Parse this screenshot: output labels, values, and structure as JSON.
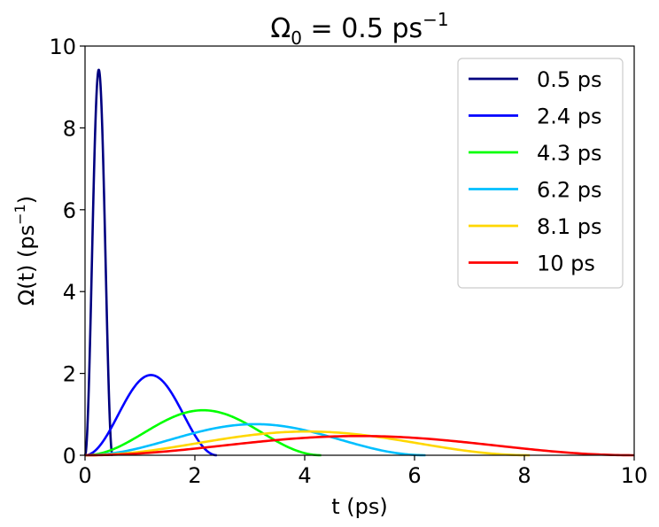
{
  "chart_data": {
    "type": "line",
    "title": {
      "base": "Ω",
      "sub": "0",
      "rest": " = 0.5 ps",
      "sup": "−1"
    },
    "xlabel": "t (ps)",
    "ylabel": {
      "base": "Ω(t) (ps",
      "sup": "−1",
      "end": ")"
    },
    "xlim": [
      0,
      10
    ],
    "ylim": [
      0,
      10
    ],
    "xticks": [
      0,
      2,
      4,
      6,
      8,
      10
    ],
    "yticks": [
      0,
      2,
      4,
      6,
      8,
      10
    ],
    "x_tick_labels": [
      "0",
      "2",
      "4",
      "6",
      "8",
      "10"
    ],
    "y_tick_labels": [
      "0",
      "2",
      "4",
      "6",
      "8",
      "10"
    ],
    "grid": false,
    "legend_position": "top-right",
    "series": [
      {
        "name": "0.5 ps",
        "duration": 0.5,
        "peak": 9.42,
        "color": "#00007f"
      },
      {
        "name": "2.4 ps",
        "duration": 2.4,
        "peak": 1.96,
        "color": "#0000ff"
      },
      {
        "name": "4.3 ps",
        "duration": 4.3,
        "peak": 1.1,
        "color": "#00ff00"
      },
      {
        "name": "6.2 ps",
        "duration": 6.2,
        "peak": 0.76,
        "color": "#00bfff"
      },
      {
        "name": "8.1 ps",
        "duration": 8.1,
        "peak": 0.58,
        "color": "#ffd700"
      },
      {
        "name": "10 ps",
        "duration": 10,
        "peak": 0.47,
        "color": "#ff0000"
      }
    ]
  }
}
